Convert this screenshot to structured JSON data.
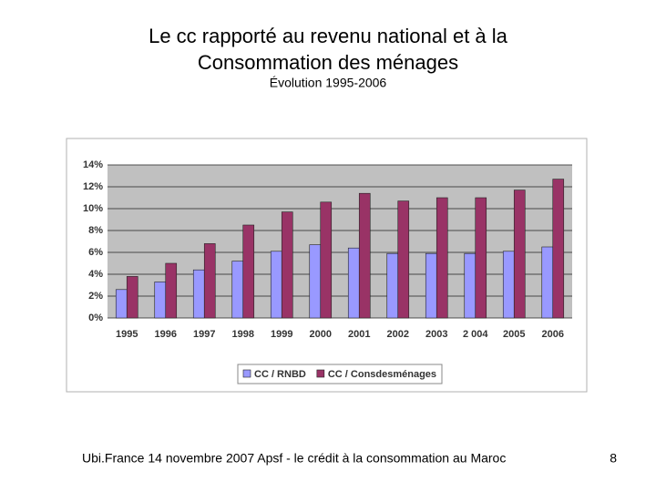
{
  "slide": {
    "title": [
      "Le cc rapporté au revenu national et à la",
      "Consommation des ménages"
    ],
    "subtitle": "Évolution 1995-2006"
  },
  "chart_data": {
    "type": "bar",
    "categories": [
      "1995",
      "1996",
      "1997",
      "1998",
      "1999",
      "2000",
      "2001",
      "2002",
      "2003",
      "2 004",
      "2005",
      "2006"
    ],
    "series": [
      {
        "name": "CC / RNBD",
        "color": "#9999ff",
        "values": [
          2.6,
          3.3,
          4.4,
          5.2,
          6.1,
          6.7,
          6.4,
          5.9,
          5.9,
          5.9,
          6.1,
          6.5
        ]
      },
      {
        "name": "CC / Consdesménages",
        "color": "#993366",
        "values": [
          3.8,
          5.0,
          6.8,
          8.5,
          9.7,
          10.6,
          11.4,
          10.7,
          11.0,
          11.0,
          11.7,
          12.7
        ]
      }
    ],
    "ylim": [
      0,
      14
    ],
    "yticks": [
      {
        "value": 0,
        "label": "0%"
      },
      {
        "value": 2,
        "label": "2%"
      },
      {
        "value": 4,
        "label": "4%"
      },
      {
        "value": 6,
        "label": "6%"
      },
      {
        "value": 8,
        "label": "8%"
      },
      {
        "value": 10,
        "label": "10%"
      },
      {
        "value": 12,
        "label": "12%"
      },
      {
        "value": 14,
        "label": "14%"
      }
    ],
    "grid": true,
    "legend": "bottom"
  },
  "footer": {
    "text": "Ubi.France 14 novembre 2007  Apsf - le crédit à la consommation au Maroc",
    "page": 8
  }
}
